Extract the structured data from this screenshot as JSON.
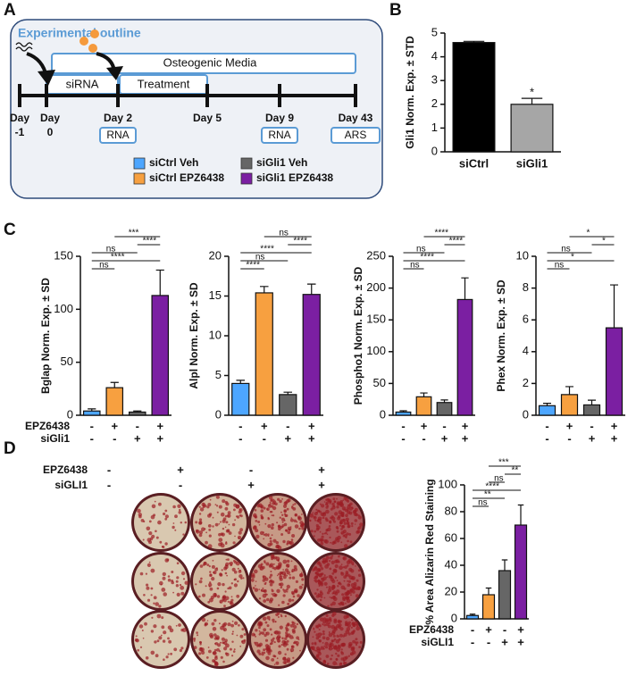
{
  "panels": [
    "A",
    "B",
    "C",
    "D"
  ],
  "outline": {
    "title": "Experimental outline",
    "media": "Osteogenic Media",
    "sirna": "siRNA",
    "treatment": "Treatment",
    "days": [
      [
        "Day",
        "-1"
      ],
      [
        "Day",
        "0"
      ],
      [
        "Day 2"
      ],
      [
        "Day 5"
      ],
      [
        "Day 9"
      ],
      [
        "Day 43"
      ]
    ],
    "assays": [
      "RNA",
      "RNA",
      "ARS"
    ],
    "legend": [
      {
        "label": "siCtrl Veh",
        "color": "#4da6ff"
      },
      {
        "label": "siCtrl EPZ6438",
        "color": "#f7a040"
      },
      {
        "label": "siGli1 Veh",
        "color": "#666666"
      },
      {
        "label": "siGli1 EPZ6438",
        "color": "#7b1fa2"
      }
    ]
  },
  "plate": {
    "conditions": [
      {
        "name": "EPZ6438",
        "signs": [
          "-",
          "+",
          "-",
          "+"
        ]
      },
      {
        "name": "siGLI1",
        "signs": [
          "-",
          "-",
          "+",
          "+"
        ]
      }
    ]
  },
  "chart_data": [
    {
      "type": "bar",
      "ylabel": "Gli1 Norm. Exp. ± STD",
      "categories": [
        "siCtrl",
        "siGli1"
      ],
      "values": [
        4.6,
        2.0
      ],
      "errors": [
        0.05,
        0.25
      ],
      "colors": [
        "#000000",
        "#a6a6a6"
      ],
      "ylim": [
        0,
        5
      ],
      "yticks": [
        0,
        1,
        2,
        3,
        4,
        5
      ],
      "annotation": {
        "bar": 1,
        "label": "*"
      }
    },
    {
      "type": "bar",
      "ylabel": "Bglap Norm. Exp. ± SD",
      "categories": [
        null,
        null,
        null,
        null
      ],
      "values": [
        4,
        26,
        3,
        113
      ],
      "errors": [
        2,
        5,
        1,
        24
      ],
      "colors": [
        "#4da6ff",
        "#f7a040",
        "#666666",
        "#7b1fa2"
      ],
      "ylim": [
        0,
        150
      ],
      "yticks": [
        0,
        50,
        100,
        150
      ],
      "comparisons": [
        {
          "pair": [
            1,
            3
          ],
          "label": "***"
        },
        {
          "pair": [
            2,
            3
          ],
          "label": "****"
        },
        {
          "pair": [
            0,
            2
          ],
          "label": "ns"
        },
        {
          "pair": [
            0,
            3
          ],
          "label": "****"
        },
        {
          "pair": [
            0,
            1
          ],
          "label": "ns"
        }
      ],
      "conditions": [
        {
          "name": "EPZ6438",
          "signs": [
            "-",
            "+",
            "-",
            "+"
          ]
        },
        {
          "name": "siGli1",
          "signs": [
            "-",
            "-",
            "+",
            "+"
          ]
        }
      ]
    },
    {
      "type": "bar",
      "ylabel": "Alpl Norm. Exp. ± SD",
      "categories": [
        null,
        null,
        null,
        null
      ],
      "values": [
        4.0,
        15.4,
        2.6,
        15.2
      ],
      "errors": [
        0.4,
        0.8,
        0.3,
        1.3
      ],
      "colors": [
        "#4da6ff",
        "#f7a040",
        "#666666",
        "#7b1fa2"
      ],
      "ylim": [
        0,
        20
      ],
      "yticks": [
        0,
        5,
        10,
        15,
        20
      ],
      "comparisons": [
        {
          "pair": [
            1,
            3
          ],
          "label": "ns"
        },
        {
          "pair": [
            2,
            3
          ],
          "label": "****"
        },
        {
          "pair": [
            0,
            3
          ],
          "label": "****"
        },
        {
          "pair": [
            0,
            2
          ],
          "label": "ns"
        },
        {
          "pair": [
            0,
            1
          ],
          "label": "****"
        }
      ],
      "conditions": [
        {
          "signs": [
            "-",
            "+",
            "-",
            "+"
          ]
        },
        {
          "signs": [
            "-",
            "-",
            "+",
            "+"
          ]
        }
      ]
    },
    {
      "type": "bar",
      "ylabel": "Phospho1 Norm. Exp. ± SD",
      "categories": [
        null,
        null,
        null,
        null
      ],
      "values": [
        5,
        29,
        20,
        182
      ],
      "errors": [
        2,
        6,
        4,
        34
      ],
      "colors": [
        "#4da6ff",
        "#f7a040",
        "#666666",
        "#7b1fa2"
      ],
      "ylim": [
        0,
        250
      ],
      "yticks": [
        0,
        50,
        100,
        150,
        200,
        250
      ],
      "comparisons": [
        {
          "pair": [
            1,
            3
          ],
          "label": "****"
        },
        {
          "pair": [
            2,
            3
          ],
          "label": "****"
        },
        {
          "pair": [
            0,
            2
          ],
          "label": "ns"
        },
        {
          "pair": [
            0,
            3
          ],
          "label": "****"
        },
        {
          "pair": [
            0,
            1
          ],
          "label": "ns"
        }
      ],
      "conditions": [
        {
          "signs": [
            "-",
            "+",
            "-",
            "+"
          ]
        },
        {
          "signs": [
            "-",
            "-",
            "+",
            "+"
          ]
        }
      ]
    },
    {
      "type": "bar",
      "ylabel": "Phex Norm. Exp. ± SD",
      "categories": [
        null,
        null,
        null,
        null
      ],
      "values": [
        0.6,
        1.3,
        0.65,
        5.5
      ],
      "errors": [
        0.15,
        0.5,
        0.3,
        2.7
      ],
      "colors": [
        "#4da6ff",
        "#f7a040",
        "#666666",
        "#7b1fa2"
      ],
      "ylim": [
        0,
        10
      ],
      "yticks": [
        0,
        2,
        4,
        6,
        8,
        10
      ],
      "comparisons": [
        {
          "pair": [
            1,
            3
          ],
          "label": "*"
        },
        {
          "pair": [
            2,
            3
          ],
          "label": "*"
        },
        {
          "pair": [
            0,
            2
          ],
          "label": "ns"
        },
        {
          "pair": [
            0,
            3
          ],
          "label": "*"
        },
        {
          "pair": [
            0,
            1
          ],
          "label": "ns"
        }
      ],
      "conditions": [
        {
          "signs": [
            "-",
            "+",
            "-",
            "+"
          ]
        },
        {
          "signs": [
            "-",
            "-",
            "+",
            "+"
          ]
        }
      ]
    },
    {
      "type": "bar",
      "ylabel": "% Area Alizarin Red Staining",
      "categories": [
        null,
        null,
        null,
        null
      ],
      "values": [
        2.5,
        18,
        36,
        70
      ],
      "errors": [
        1,
        5,
        8,
        15
      ],
      "colors": [
        "#4da6ff",
        "#f7a040",
        "#666666",
        "#7b1fa2"
      ],
      "ylim": [
        0,
        100
      ],
      "yticks": [
        0,
        20,
        40,
        60,
        80,
        100
      ],
      "comparisons": [
        {
          "pair": [
            1,
            3
          ],
          "label": "***"
        },
        {
          "pair": [
            2,
            3
          ],
          "label": "**"
        },
        {
          "pair": [
            1,
            2
          ],
          "label": "ns"
        },
        {
          "pair": [
            0,
            3
          ],
          "label": "****"
        },
        {
          "pair": [
            0,
            2
          ],
          "label": "**"
        },
        {
          "pair": [
            0,
            1
          ],
          "label": "ns"
        }
      ],
      "conditions": [
        {
          "name": "EPZ6438",
          "signs": [
            "-",
            "+",
            "-",
            "+"
          ]
        },
        {
          "name": "siGLI1",
          "signs": [
            "-",
            "-",
            "+",
            "+"
          ]
        }
      ]
    }
  ]
}
